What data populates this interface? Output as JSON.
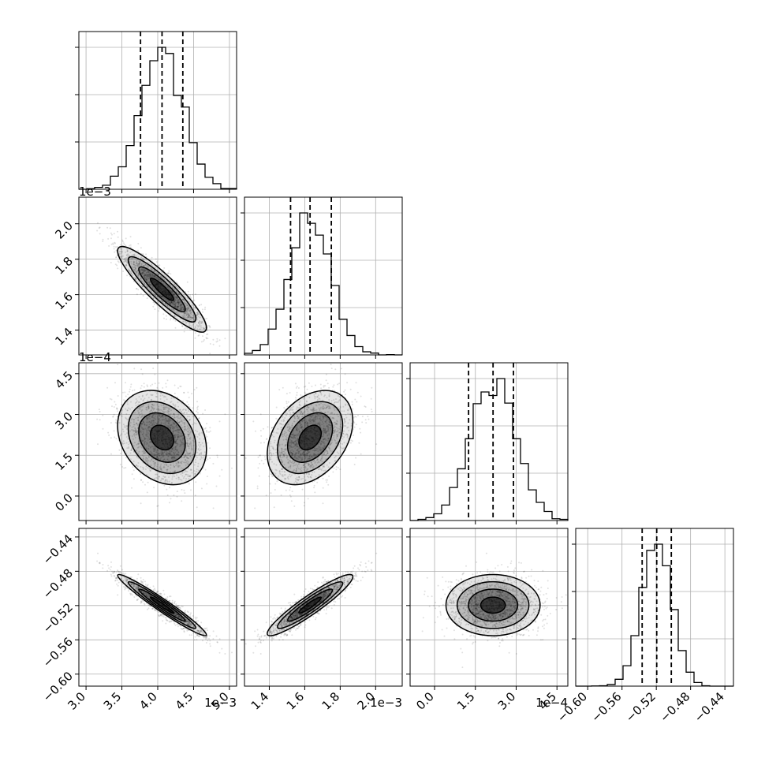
{
  "chart_data": {
    "type": "corner",
    "parameters": [
      {
        "median": 0.00406,
        "q16": 0.00376,
        "q84": 0.00435,
        "range": [
          0.0029,
          0.0051
        ],
        "ticks": [
          0.003,
          0.0035,
          0.004,
          0.0045,
          0.005
        ],
        "tick_labels": [
          "3.0",
          "3.5",
          "4.0",
          "4.5",
          "5.0"
        ],
        "offset_label": "1e−3"
      },
      {
        "median": 0.00163,
        "q16": 0.00152,
        "q84": 0.00175,
        "range": [
          0.00126,
          0.00215
        ],
        "ticks": [
          0.0014,
          0.0016,
          0.0018,
          0.002
        ],
        "tick_labels": [
          "1.4",
          "1.6",
          "1.8",
          "2.0"
        ],
        "offset_label": "1e−3"
      },
      {
        "median": 0.000215,
        "q16": 0.000125,
        "q84": 0.00029,
        "range": [
          -9e-05,
          0.00049
        ],
        "ticks": [
          0.0,
          0.00015,
          0.0003,
          0.00045
        ],
        "tick_labels": [
          "0.0",
          "1.5",
          "3.0",
          "4.5"
        ],
        "offset_label": "1e−4"
      },
      {
        "median": -0.5195,
        "q16": -0.5365,
        "q84": -0.5025,
        "range": [
          -0.614,
          -0.43
        ],
        "ticks": [
          -0.6,
          -0.56,
          -0.52,
          -0.48,
          -0.44
        ],
        "tick_labels": [
          "−0.60",
          "−0.56",
          "−0.52",
          "−0.48",
          "−0.44"
        ],
        "offset_label": ""
      }
    ],
    "correlations": {
      "0-1": -0.9,
      "0-2": -0.25,
      "1-2": 0.35,
      "0-3": -0.97,
      "1-3": 0.93,
      "2-3": 0.0
    },
    "grid": true,
    "quantile_lines": [
      0.16,
      0.5,
      0.84
    ]
  },
  "colors": {
    "axis": "#000000",
    "grid": "#b0b0b0",
    "points": "#000000",
    "contour": "#000000"
  }
}
